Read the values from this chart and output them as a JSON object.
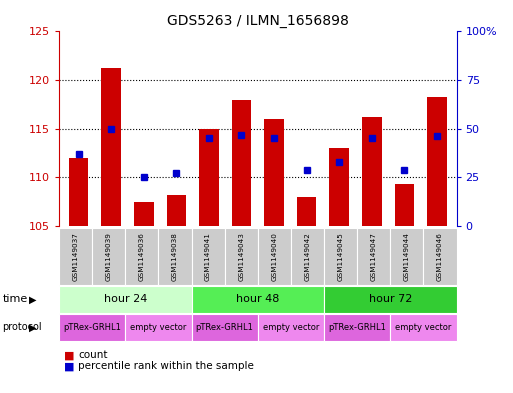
{
  "title": "GDS5263 / ILMN_1656898",
  "samples": [
    "GSM1149037",
    "GSM1149039",
    "GSM1149036",
    "GSM1149038",
    "GSM1149041",
    "GSM1149043",
    "GSM1149040",
    "GSM1149042",
    "GSM1149045",
    "GSM1149047",
    "GSM1149044",
    "GSM1149046"
  ],
  "count_values": [
    112.0,
    121.2,
    107.5,
    108.2,
    115.0,
    118.0,
    116.0,
    108.0,
    113.0,
    116.2,
    109.3,
    118.3
  ],
  "percentile_values": [
    37,
    50,
    25,
    27,
    45,
    47,
    45,
    29,
    33,
    45,
    29,
    46
  ],
  "ylim_left": [
    105,
    125
  ],
  "ylim_right": [
    0,
    100
  ],
  "yticks_left": [
    105,
    110,
    115,
    120,
    125
  ],
  "yticks_right": [
    0,
    25,
    50,
    75,
    100
  ],
  "ytick_labels_right": [
    "0",
    "25",
    "50",
    "75",
    "100%"
  ],
  "bar_color": "#cc0000",
  "dot_color": "#0000cc",
  "bar_width": 0.6,
  "time_groups": [
    {
      "label": "hour 24",
      "start": 0,
      "end": 4,
      "color": "#ccffcc"
    },
    {
      "label": "hour 48",
      "start": 4,
      "end": 8,
      "color": "#55ee55"
    },
    {
      "label": "hour 72",
      "start": 8,
      "end": 12,
      "color": "#33cc33"
    }
  ],
  "protocol_groups": [
    {
      "label": "pTRex-GRHL1",
      "start": 0,
      "end": 2,
      "color": "#dd66dd"
    },
    {
      "label": "empty vector",
      "start": 2,
      "end": 4,
      "color": "#ee88ee"
    },
    {
      "label": "pTRex-GRHL1",
      "start": 4,
      "end": 6,
      "color": "#dd66dd"
    },
    {
      "label": "empty vector",
      "start": 6,
      "end": 8,
      "color": "#ee88ee"
    },
    {
      "label": "pTRex-GRHL1",
      "start": 8,
      "end": 10,
      "color": "#dd66dd"
    },
    {
      "label": "empty vector",
      "start": 10,
      "end": 12,
      "color": "#ee88ee"
    }
  ],
  "grid_color": "#333333",
  "background_color": "#ffffff",
  "sample_box_color": "#cccccc",
  "left_axis_color": "#cc0000",
  "right_axis_color": "#0000cc"
}
